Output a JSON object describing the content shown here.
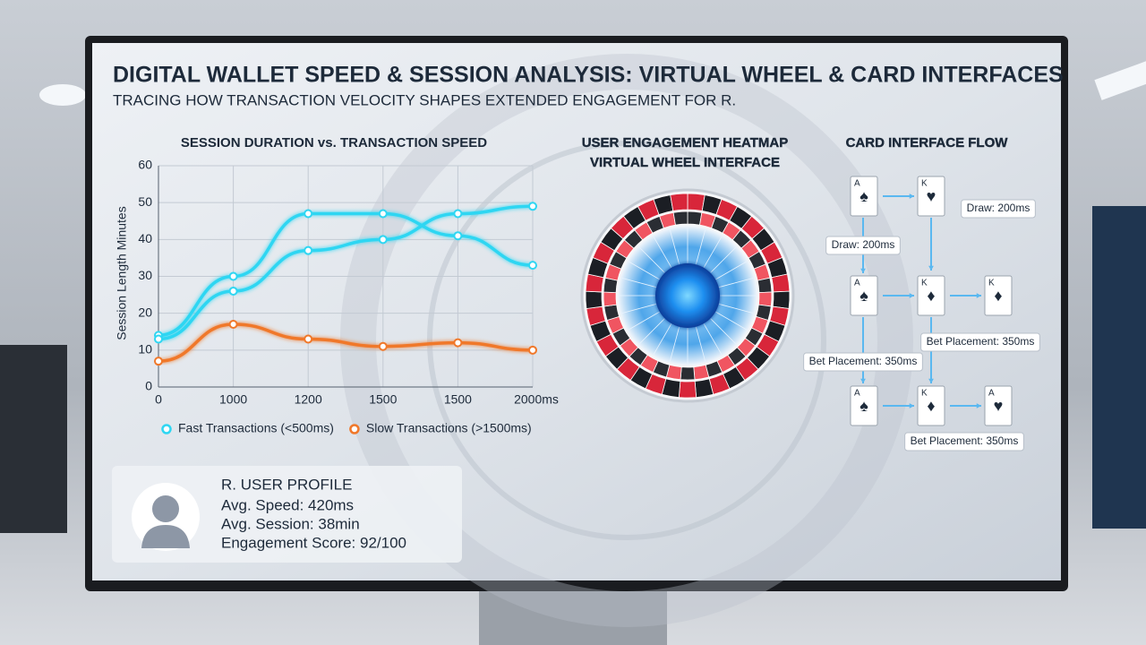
{
  "header": {
    "title": "DIGITAL WALLET SPEED & SESSION ANALYSIS: VIRTUAL WHEEL & CARD INTERFACES",
    "subtitle": "TRACING HOW TRANSACTION VELOCITY SHAPES EXTENDED ENGAGEMENT FOR R."
  },
  "chart_data": {
    "type": "line",
    "title": "SESSION DURATION vs. TRANSACTION SPEED",
    "y_label": "Session Length Minutes",
    "categories": [
      "0",
      "1000",
      "1200",
      "1500",
      "1500",
      "2000ms"
    ],
    "series": [
      {
        "name": "Fast Transactions (<500ms)",
        "color": "#2fd6f2",
        "values": [
          14,
          30,
          47,
          47,
          41,
          33
        ]
      },
      {
        "color": "#2fd6f2",
        "values": [
          13,
          26,
          37,
          40,
          47,
          49
        ]
      },
      {
        "name": "Slow Transactions (>1500ms)",
        "color": "#f0782a",
        "values": [
          7,
          17,
          13,
          11,
          12,
          10
        ]
      }
    ],
    "ylim": [
      0,
      60
    ],
    "yticks": [
      0,
      10,
      20,
      30,
      40,
      50,
      60
    ],
    "grid": true
  },
  "heatmap": {
    "title": "USER ENGAGEMENT HEATMAP",
    "subtitle": "VIRTUAL WHEEL INTERFACE"
  },
  "card_flow": {
    "title": "CARD INTERFACE FLOW",
    "rows": [
      [
        {
          "rank": "A",
          "suit": "♠",
          "color": "#111"
        },
        {
          "rank": "K",
          "suit": "♥",
          "color": "#d21f2b"
        }
      ],
      [
        {
          "rank": "A",
          "suit": "♠",
          "color": "#111"
        },
        {
          "rank": "K",
          "suit": "♦",
          "color": "#c0392b"
        },
        {
          "rank": "K",
          "suit": "♦",
          "color": "#c0392b"
        }
      ],
      [
        {
          "rank": "A",
          "suit": "♠",
          "color": "#111"
        },
        {
          "rank": "K",
          "suit": "♦",
          "color": "#c0392b"
        },
        {
          "rank": "A",
          "suit": "♥",
          "color": "#d21f2b"
        }
      ]
    ],
    "labels": [
      "Draw: 200ms",
      "Draw: 200ms",
      "Bet Placement: 350ms",
      "Bet Placement: 350ms",
      "Bet Placement: 350ms"
    ]
  },
  "profile": {
    "title": "R. USER PROFILE",
    "speed": "Avg. Speed: 420ms",
    "session": "Avg. Session: 38min",
    "score": "Engagement Score: 92/100"
  }
}
